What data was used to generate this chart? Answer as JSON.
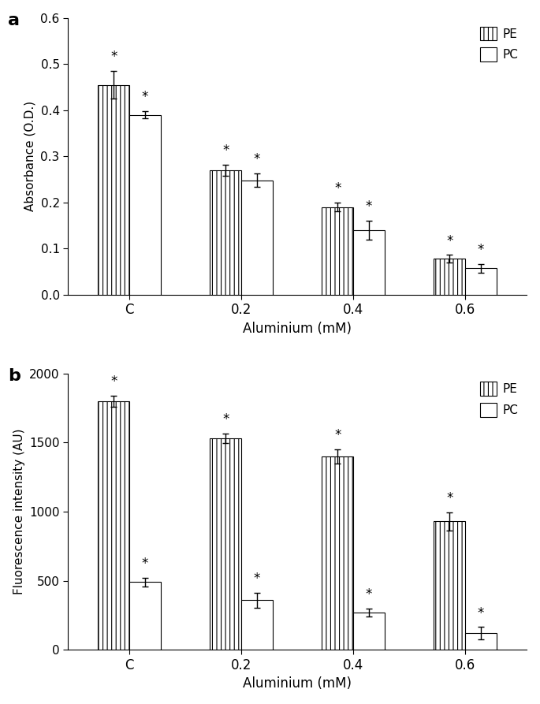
{
  "categories": [
    "C",
    "0.2",
    "0.4",
    "0.6"
  ],
  "panel_a": {
    "PE_values": [
      0.455,
      0.27,
      0.19,
      0.078
    ],
    "PE_errors": [
      0.03,
      0.012,
      0.01,
      0.008
    ],
    "PC_values": [
      0.39,
      0.248,
      0.14,
      0.057
    ],
    "PC_errors": [
      0.008,
      0.015,
      0.02,
      0.01
    ],
    "ylabel": "Absorbance (O.D.)",
    "ylim": [
      0.0,
      0.6
    ],
    "yticks": [
      0.0,
      0.1,
      0.2,
      0.3,
      0.4,
      0.5,
      0.6
    ]
  },
  "panel_b": {
    "PE_values": [
      1800,
      1530,
      1400,
      930
    ],
    "PE_errors": [
      40,
      35,
      50,
      65
    ],
    "PC_values": [
      490,
      360,
      270,
      120
    ],
    "PC_errors": [
      30,
      55,
      30,
      45
    ],
    "ylabel": "Fluorescence intensity (AU)",
    "ylim": [
      0,
      2000
    ],
    "yticks": [
      0,
      500,
      1000,
      1500,
      2000
    ]
  },
  "xlabel": "Aluminium (mM)",
  "legend_PE": "PE",
  "legend_PC": "PC",
  "bar_width": 0.28,
  "PE_color": "white",
  "PC_color": "white",
  "edge_color": "black",
  "error_color": "black",
  "label_a": "a",
  "label_b": "b"
}
